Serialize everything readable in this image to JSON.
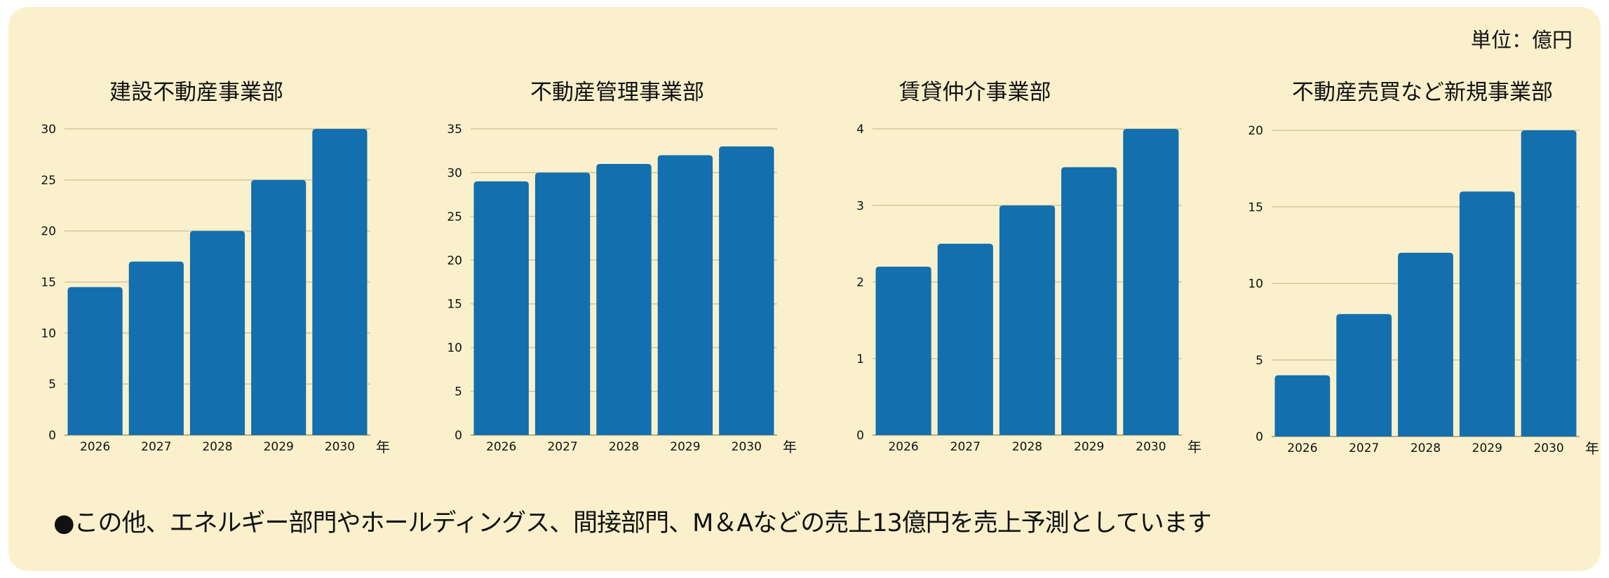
{
  "unit_label": "単位：億円",
  "footer_note": "●この他、エネルギー部門やホールディングス、間接部門、M＆Aなどの売上13億円を売上予測としています",
  "colors": {
    "bar": "#136fad",
    "background": "#faf1cc",
    "grid": "#cfc69f"
  },
  "chart_data": [
    {
      "type": "bar",
      "title": "建設不動産事業部",
      "categories": [
        "2026",
        "2027",
        "2028",
        "2029",
        "2030"
      ],
      "values": [
        14.5,
        17,
        20,
        25,
        30
      ],
      "xlabel": "年",
      "ylabel": "",
      "ylim": [
        0,
        30
      ],
      "yticks": [
        0,
        5,
        10,
        15,
        20,
        25,
        30
      ],
      "grid": true
    },
    {
      "type": "bar",
      "title": "不動産管理事業部",
      "categories": [
        "2026",
        "2027",
        "2028",
        "2029",
        "2030"
      ],
      "values": [
        29,
        30,
        31,
        32,
        33
      ],
      "xlabel": "年",
      "ylabel": "",
      "ylim": [
        0,
        35
      ],
      "yticks": [
        0,
        5,
        10,
        15,
        20,
        25,
        30,
        35
      ],
      "grid": true
    },
    {
      "type": "bar",
      "title": "賃貸仲介事業部",
      "categories": [
        "2026",
        "2027",
        "2028",
        "2029",
        "2030"
      ],
      "values": [
        2.2,
        2.5,
        3,
        3.5,
        4
      ],
      "xlabel": "年",
      "ylabel": "",
      "ylim": [
        0,
        4
      ],
      "yticks": [
        0,
        1,
        2,
        3,
        4
      ],
      "grid": true
    },
    {
      "type": "bar",
      "title": "不動産売買など新規事業部",
      "categories": [
        "2026",
        "2027",
        "2028",
        "2029",
        "2030"
      ],
      "values": [
        4,
        8,
        12,
        16,
        20
      ],
      "xlabel": "年",
      "ylabel": "",
      "ylim": [
        0,
        20
      ],
      "yticks": [
        0,
        5,
        10,
        15,
        20
      ],
      "grid": true
    }
  ]
}
